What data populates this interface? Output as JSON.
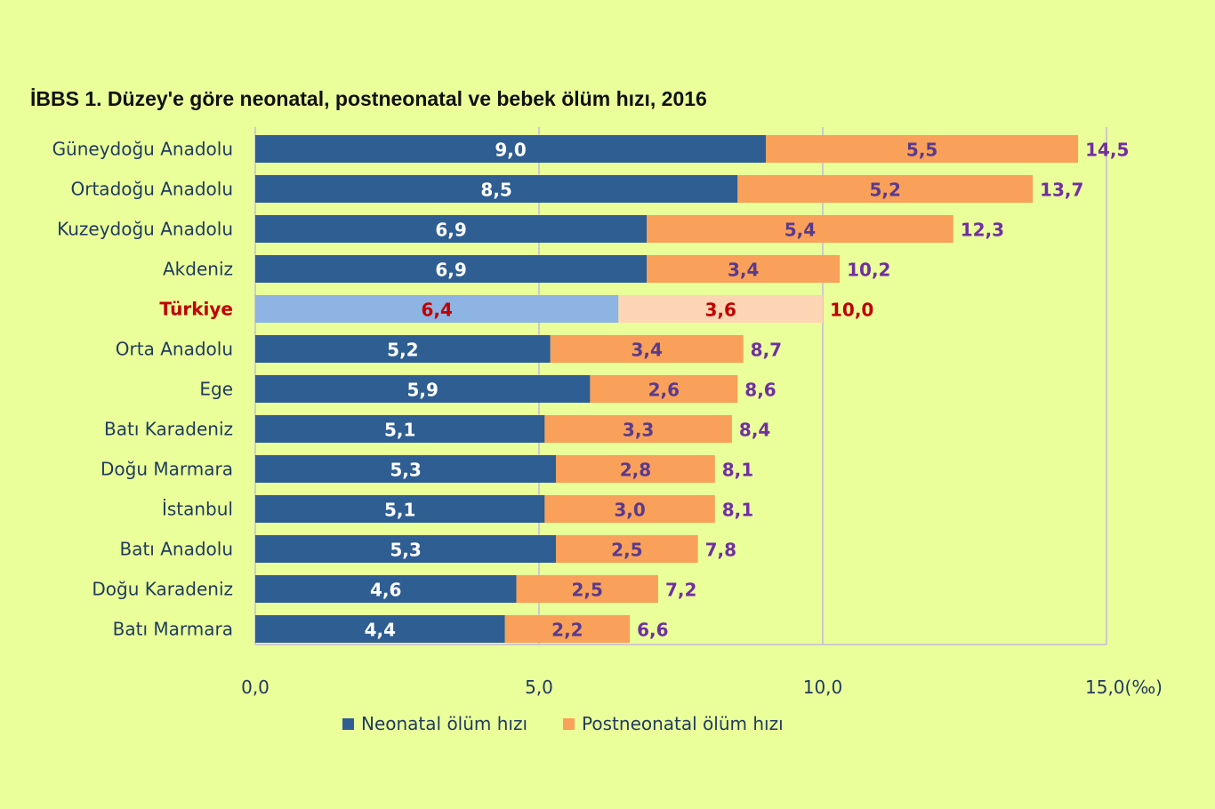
{
  "chart_data": {
    "type": "bar",
    "orientation": "horizontal",
    "stacked": true,
    "title": "İBBS 1. Düzey'e göre neonatal, postneonatal  ve bebek ölüm hızı, 2016",
    "categories": [
      "Güneydoğu Anadolu",
      "Ortadoğu Anadolu",
      "Kuzeydoğu Anadolu",
      "Akdeniz",
      "Türkiye",
      "Orta Anadolu",
      "Ege",
      "Batı Karadeniz",
      "Doğu Marmara",
      "İstanbul",
      "Batı Anadolu",
      "Doğu Karadeniz",
      "Batı Marmara"
    ],
    "highlight_category": "Türkiye",
    "series": [
      {
        "name": "Neonatal ölüm hızı",
        "color": "#2e5e92",
        "highlight_color": "#8db4e2",
        "values": [
          9.0,
          8.5,
          6.9,
          6.9,
          6.4,
          5.2,
          5.9,
          5.1,
          5.3,
          5.1,
          5.3,
          4.6,
          4.4
        ],
        "labels": [
          "9,0",
          "8,5",
          "6,9",
          "6,9",
          "6,4",
          "5,2",
          "5,9",
          "5,1",
          "5,3",
          "5,1",
          "5,3",
          "4,6",
          "4,4"
        ]
      },
      {
        "name": "Postneonatal ölüm hızı",
        "color": "#f9a05a",
        "highlight_color": "#fcd5b4",
        "values": [
          5.5,
          5.2,
          5.4,
          3.4,
          3.6,
          3.4,
          2.6,
          3.3,
          2.8,
          3.0,
          2.5,
          2.5,
          2.2
        ],
        "labels": [
          "5,5",
          "5,2",
          "5,4",
          "3,4",
          "3,6",
          "3,4",
          "2,6",
          "3,3",
          "2,8",
          "3,0",
          "2,5",
          "2,5",
          "2,2"
        ]
      }
    ],
    "totals": {
      "values": [
        14.5,
        13.7,
        12.3,
        10.2,
        10.0,
        8.7,
        8.6,
        8.4,
        8.1,
        8.1,
        7.8,
        7.2,
        6.6
      ],
      "labels": [
        "14,5",
        "13,7",
        "12,3",
        "10,2",
        "10,0",
        "8,7",
        "8,6",
        "8,4",
        "8,1",
        "8,1",
        "7,8",
        "7,2",
        "6,6"
      ]
    },
    "xlim": [
      0,
      15
    ],
    "x_ticks": [
      0,
      5,
      10,
      15
    ],
    "x_tick_labels": [
      "0,0",
      "5,0",
      "10,0",
      "15,0(‰)"
    ],
    "xlabel": "",
    "ylabel": "",
    "grid": true,
    "legend_position": "bottom"
  }
}
